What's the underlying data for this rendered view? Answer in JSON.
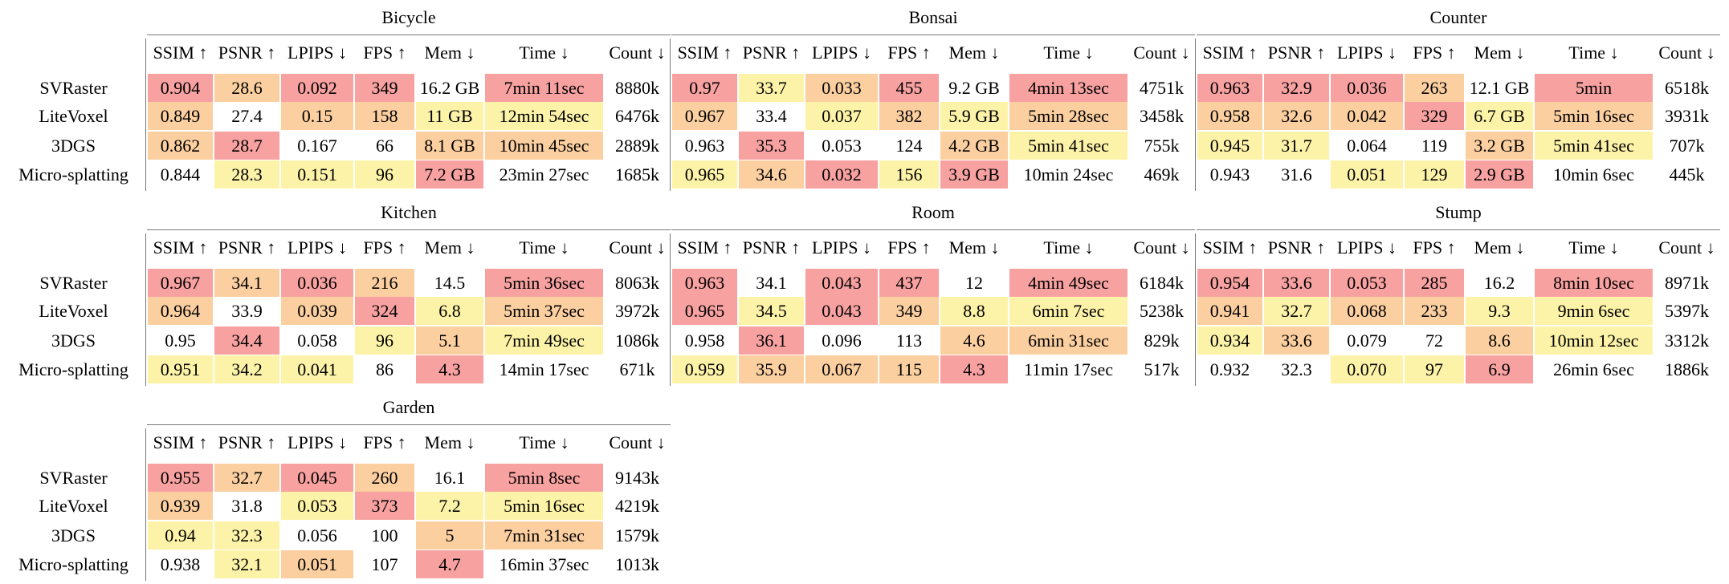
{
  "columns": [
    "SSIM ↑",
    "PSNR ↑",
    "LPIPS ↓",
    "FPS ↑",
    "Mem ↓",
    "Time ↓",
    "Count ↓"
  ],
  "methods": [
    "SVRaster",
    "LiteVoxel",
    "3DGS",
    "Micro-splatting"
  ],
  "scenes": [
    {
      "name": "Bicycle",
      "rows": [
        {
          "values": [
            "0.904",
            "28.6",
            "0.092",
            "349",
            "16.2 GB",
            "7min 11sec",
            "8880k"
          ],
          "fills": [
            "#f8a1a1",
            "#fbcfa0",
            "#f8a1a1",
            "#f8a1a1",
            null,
            "#f8a1a1",
            null
          ]
        },
        {
          "values": [
            "0.849",
            "27.4",
            "0.15",
            "158",
            "11 GB",
            "12min 54sec",
            "6476k"
          ],
          "fills": [
            "#fbcfa0",
            null,
            "#fbcfa0",
            "#fbcfa0",
            "#fdf3a8",
            "#fdf3a8",
            null
          ]
        },
        {
          "values": [
            "0.862",
            "28.7",
            "0.167",
            "66",
            "8.1 GB",
            "10min 45sec",
            "2889k"
          ],
          "fills": [
            "#fbcfa0",
            "#f8a1a1",
            null,
            null,
            "#fbcfa0",
            "#fbcfa0",
            null
          ]
        },
        {
          "values": [
            "0.844",
            "28.3",
            "0.151",
            "96",
            "7.2 GB",
            "23min 27sec",
            "1685k"
          ],
          "fills": [
            null,
            "#fdf3a8",
            "#fdf3a8",
            "#fdf3a8",
            "#f8a1a1",
            null,
            null
          ]
        }
      ]
    },
    {
      "name": "Bonsai",
      "rows": [
        {
          "values": [
            "0.97",
            "33.7",
            "0.033",
            "455",
            "9.2 GB",
            "4min 13sec",
            "4751k"
          ],
          "fills": [
            "#f8a1a1",
            "#fdf3a8",
            "#fbcfa0",
            "#f8a1a1",
            null,
            "#f8a1a1",
            null
          ]
        },
        {
          "values": [
            "0.967",
            "33.4",
            "0.037",
            "382",
            "5.9 GB",
            "5min 28sec",
            "3458k"
          ],
          "fills": [
            "#fbcfa0",
            null,
            "#fdf3a8",
            "#fbcfa0",
            "#fdf3a8",
            "#fbcfa0",
            null
          ]
        },
        {
          "values": [
            "0.963",
            "35.3",
            "0.053",
            "124",
            "4.2 GB",
            "5min 41sec",
            "755k"
          ],
          "fills": [
            null,
            "#f8a1a1",
            null,
            null,
            "#fbcfa0",
            "#fdf3a8",
            null
          ]
        },
        {
          "values": [
            "0.965",
            "34.6",
            "0.032",
            "156",
            "3.9 GB",
            "10min 24sec",
            "469k"
          ],
          "fills": [
            "#fdf3a8",
            "#fbcfa0",
            "#f8a1a1",
            "#fdf3a8",
            "#f8a1a1",
            null,
            null
          ]
        }
      ]
    },
    {
      "name": "Counter",
      "rows": [
        {
          "values": [
            "0.963",
            "32.9",
            "0.036",
            "263",
            "12.1 GB",
            "5min",
            "6518k"
          ],
          "fills": [
            "#f8a1a1",
            "#f8a1a1",
            "#f8a1a1",
            "#fbcfa0",
            null,
            "#f8a1a1",
            null
          ]
        },
        {
          "values": [
            "0.958",
            "32.6",
            "0.042",
            "329",
            "6.7 GB",
            "5min 16sec",
            "3931k"
          ],
          "fills": [
            "#fbcfa0",
            "#fbcfa0",
            "#fbcfa0",
            "#f8a1a1",
            "#fdf3a8",
            "#fbcfa0",
            null
          ]
        },
        {
          "values": [
            "0.945",
            "31.7",
            "0.064",
            "119",
            "3.2 GB",
            "5min 41sec",
            "707k"
          ],
          "fills": [
            "#fdf3a8",
            "#fdf3a8",
            null,
            null,
            "#fbcfa0",
            "#fdf3a8",
            null
          ]
        },
        {
          "values": [
            "0.943",
            "31.6",
            "0.051",
            "129",
            "2.9 GB",
            "10min 6sec",
            "445k"
          ],
          "fills": [
            null,
            null,
            "#fdf3a8",
            "#fdf3a8",
            "#f8a1a1",
            null,
            null
          ]
        }
      ]
    },
    {
      "name": "Kitchen",
      "rows": [
        {
          "values": [
            "0.967",
            "34.1",
            "0.036",
            "216",
            "14.5",
            "5min 36sec",
            "8063k"
          ],
          "fills": [
            "#f8a1a1",
            "#fbcfa0",
            "#f8a1a1",
            "#fbcfa0",
            null,
            "#f8a1a1",
            null
          ]
        },
        {
          "values": [
            "0.964",
            "33.9",
            "0.039",
            "324",
            "6.8",
            "5min 37sec",
            "3972k"
          ],
          "fills": [
            "#fbcfa0",
            null,
            "#fbcfa0",
            "#f8a1a1",
            "#fdf3a8",
            "#fbcfa0",
            null
          ]
        },
        {
          "values": [
            "0.95",
            "34.4",
            "0.058",
            "96",
            "5.1",
            "7min 49sec",
            "1086k"
          ],
          "fills": [
            null,
            "#f8a1a1",
            null,
            "#fdf3a8",
            "#fbcfa0",
            "#fdf3a8",
            null
          ]
        },
        {
          "values": [
            "0.951",
            "34.2",
            "0.041",
            "86",
            "4.3",
            "14min 17sec",
            "671k"
          ],
          "fills": [
            "#fdf3a8",
            "#fdf3a8",
            "#fdf3a8",
            null,
            "#f8a1a1",
            null,
            null
          ]
        }
      ]
    },
    {
      "name": "Room",
      "rows": [
        {
          "values": [
            "0.963",
            "34.1",
            "0.043",
            "437",
            "12",
            "4min 49sec",
            "6184k"
          ],
          "fills": [
            "#f8a1a1",
            null,
            "#f8a1a1",
            "#f8a1a1",
            null,
            "#f8a1a1",
            null
          ]
        },
        {
          "values": [
            "0.965",
            "34.5",
            "0.043",
            "349",
            "8.8",
            "6min 7sec",
            "5238k"
          ],
          "fills": [
            "#f8a1a1",
            "#fdf3a8",
            "#f8a1a1",
            "#fbcfa0",
            "#fdf3a8",
            "#fdf3a8",
            null
          ]
        },
        {
          "values": [
            "0.958",
            "36.1",
            "0.096",
            "113",
            "4.6",
            "6min 31sec",
            "829k"
          ],
          "fills": [
            null,
            "#f8a1a1",
            null,
            null,
            "#fbcfa0",
            "#fbcfa0",
            null
          ]
        },
        {
          "values": [
            "0.959",
            "35.9",
            "0.067",
            "115",
            "4.3",
            "11min 17sec",
            "517k"
          ],
          "fills": [
            "#fdf3a8",
            "#fbcfa0",
            "#fbcfa0",
            "#fbcfa0",
            "#f8a1a1",
            null,
            null
          ]
        }
      ]
    },
    {
      "name": "Stump",
      "rows": [
        {
          "values": [
            "0.954",
            "33.6",
            "0.053",
            "285",
            "16.2",
            "8min 10sec",
            "8971k"
          ],
          "fills": [
            "#f8a1a1",
            "#f8a1a1",
            "#f8a1a1",
            "#f8a1a1",
            null,
            "#f8a1a1",
            null
          ]
        },
        {
          "values": [
            "0.941",
            "32.7",
            "0.068",
            "233",
            "9.3",
            "9min 6sec",
            "5397k"
          ],
          "fills": [
            "#fbcfa0",
            "#fdf3a8",
            "#fbcfa0",
            "#fbcfa0",
            "#fdf3a8",
            "#fdf3a8",
            null
          ]
        },
        {
          "values": [
            "0.934",
            "33.6",
            "0.079",
            "72",
            "8.6",
            "10min 12sec",
            "3312k"
          ],
          "fills": [
            "#fdf3a8",
            "#fbcfa0",
            null,
            null,
            "#fbcfa0",
            "#fdf3a8",
            null
          ]
        },
        {
          "values": [
            "0.932",
            "32.3",
            "0.070",
            "97",
            "6.9",
            "26min 6sec",
            "1886k"
          ],
          "fills": [
            null,
            null,
            "#fdf3a8",
            "#fdf3a8",
            "#f8a1a1",
            null,
            null
          ]
        }
      ]
    },
    {
      "name": "Garden",
      "rows": [
        {
          "values": [
            "0.955",
            "32.7",
            "0.045",
            "260",
            "16.1",
            "5min 8sec",
            "9143k"
          ],
          "fills": [
            "#f8a1a1",
            "#fbcfa0",
            "#f8a1a1",
            "#fbcfa0",
            null,
            "#f8a1a1",
            null
          ]
        },
        {
          "values": [
            "0.939",
            "31.8",
            "0.053",
            "373",
            "7.2",
            "5min 16sec",
            "4219k"
          ],
          "fills": [
            "#fbcfa0",
            null,
            "#fdf3a8",
            "#f8a1a1",
            "#fdf3a8",
            "#fdf3a8",
            null
          ]
        },
        {
          "values": [
            "0.94",
            "32.3",
            "0.056",
            "100",
            "5",
            "7min 31sec",
            "1579k"
          ],
          "fills": [
            "#fdf3a8",
            "#fdf3a8",
            null,
            null,
            "#fbcfa0",
            "#fbcfa0",
            null
          ]
        },
        {
          "values": [
            "0.938",
            "32.1",
            "0.051",
            "107",
            "4.7",
            "16min 37sec",
            "1013k"
          ],
          "fills": [
            null,
            "#fdf3a8",
            "#fbcfa0",
            null,
            "#f8a1a1",
            null,
            null
          ]
        }
      ]
    }
  ]
}
